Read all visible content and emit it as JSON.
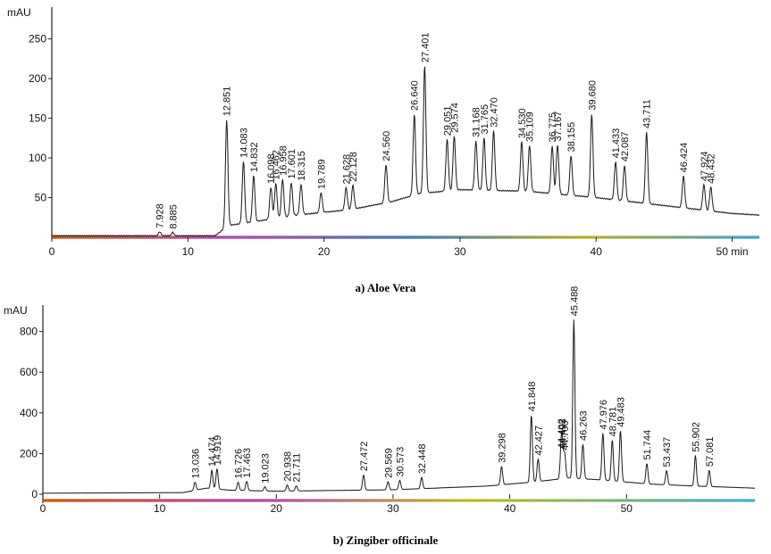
{
  "chart_data": [
    {
      "type": "line",
      "caption": "a) Aloe Vera",
      "ylabel": "mAU",
      "xlabel": "min",
      "xlim": [
        0,
        52
      ],
      "ylim": [
        0,
        290
      ],
      "x_ticks": [
        0,
        10,
        20,
        30,
        40,
        50
      ],
      "x_tick_labels": [
        "0",
        "10",
        "20",
        "30",
        "40",
        "50 min"
      ],
      "y_ticks": [
        50,
        100,
        150,
        200,
        250
      ],
      "y_tick_labels": [
        "50",
        "100",
        "150",
        "200",
        "250"
      ],
      "grid": false,
      "baseline": [
        [
          0,
          2
        ],
        [
          12,
          2
        ],
        [
          13,
          15
        ],
        [
          15,
          20
        ],
        [
          18,
          28
        ],
        [
          22,
          35
        ],
        [
          25,
          45
        ],
        [
          27,
          55
        ],
        [
          30,
          60
        ],
        [
          35,
          58
        ],
        [
          40,
          50
        ],
        [
          45,
          40
        ],
        [
          50,
          30
        ],
        [
          52,
          28
        ]
      ],
      "peaks": [
        {
          "rt": "7.928",
          "x": 7.928,
          "y": 5
        },
        {
          "rt": "8.885",
          "x": 8.885,
          "y": 4
        },
        {
          "rt": "12.851",
          "x": 12.851,
          "y": 135
        },
        {
          "rt": "14.083",
          "x": 14.083,
          "y": 78
        },
        {
          "rt": "14.832",
          "x": 14.832,
          "y": 58
        },
        {
          "rt": "16.098",
          "x": 16.098,
          "y": 40
        },
        {
          "rt": "16.462",
          "x": 16.462,
          "y": 44
        },
        {
          "rt": "16.958",
          "x": 16.958,
          "y": 48
        },
        {
          "rt": "17.601",
          "x": 17.601,
          "y": 42
        },
        {
          "rt": "18.315",
          "x": 18.315,
          "y": 38
        },
        {
          "rt": "19.789",
          "x": 19.789,
          "y": 25
        },
        {
          "rt": "21.628",
          "x": 21.628,
          "y": 28
        },
        {
          "rt": "22.128",
          "x": 22.128,
          "y": 30
        },
        {
          "rt": "24.560",
          "x": 24.56,
          "y": 48
        },
        {
          "rt": "26.640",
          "x": 26.64,
          "y": 102
        },
        {
          "rt": "27.401",
          "x": 27.401,
          "y": 160
        },
        {
          "rt": "29.051",
          "x": 29.051,
          "y": 65
        },
        {
          "rt": "29.574",
          "x": 29.574,
          "y": 68
        },
        {
          "rt": "31.168",
          "x": 31.168,
          "y": 62
        },
        {
          "rt": "31.765",
          "x": 31.765,
          "y": 66
        },
        {
          "rt": "32.470",
          "x": 32.47,
          "y": 75
        },
        {
          "rt": "34.530",
          "x": 34.53,
          "y": 62
        },
        {
          "rt": "35.109",
          "x": 35.109,
          "y": 58
        },
        {
          "rt": "36.775",
          "x": 36.775,
          "y": 60
        },
        {
          "rt": "37.167",
          "x": 37.167,
          "y": 62
        },
        {
          "rt": "38.155",
          "x": 38.155,
          "y": 50
        },
        {
          "rt": "39.680",
          "x": 39.68,
          "y": 105
        },
        {
          "rt": "41.433",
          "x": 41.433,
          "y": 48
        },
        {
          "rt": "42.087",
          "x": 42.087,
          "y": 45
        },
        {
          "rt": "43.711",
          "x": 43.711,
          "y": 90
        },
        {
          "rt": "46.424",
          "x": 46.424,
          "y": 40
        },
        {
          "rt": "47.924",
          "x": 47.924,
          "y": 32
        },
        {
          "rt": "48.432",
          "x": 48.432,
          "y": 30
        }
      ]
    },
    {
      "type": "line",
      "caption": "b) Zingiber officinale",
      "ylabel": "mAU",
      "xlim": [
        0,
        61
      ],
      "ylim": [
        0,
        930
      ],
      "x_ticks": [
        0,
        10,
        20,
        30,
        40,
        50
      ],
      "x_tick_labels": [
        "0",
        "10",
        "20",
        "30",
        "40",
        "50"
      ],
      "y_ticks": [
        0,
        200,
        400,
        600,
        800
      ],
      "y_tick_labels": [
        "0",
        "200",
        "400",
        "600",
        "800"
      ],
      "grid": false,
      "baseline": [
        [
          0,
          5
        ],
        [
          12,
          8
        ],
        [
          14,
          30
        ],
        [
          16,
          20
        ],
        [
          20,
          15
        ],
        [
          30,
          22
        ],
        [
          38,
          40
        ],
        [
          42,
          60
        ],
        [
          45,
          80
        ],
        [
          48,
          70
        ],
        [
          52,
          50
        ],
        [
          56,
          40
        ],
        [
          61,
          30
        ]
      ],
      "peaks": [
        {
          "rt": "13.036",
          "x": 13.036,
          "y": 40
        },
        {
          "rt": "14.474",
          "x": 14.474,
          "y": 90
        },
        {
          "rt": "14.919",
          "x": 14.919,
          "y": 100
        },
        {
          "rt": "16.726",
          "x": 16.726,
          "y": 40
        },
        {
          "rt": "17.463",
          "x": 17.463,
          "y": 45
        },
        {
          "rt": "19.023",
          "x": 19.023,
          "y": 20
        },
        {
          "rt": "20.938",
          "x": 20.938,
          "y": 30
        },
        {
          "rt": "21.711",
          "x": 21.711,
          "y": 25
        },
        {
          "rt": "27.472",
          "x": 27.472,
          "y": 75
        },
        {
          "rt": "29.569",
          "x": 29.569,
          "y": 40
        },
        {
          "rt": "30.573",
          "x": 30.573,
          "y": 45
        },
        {
          "rt": "32.448",
          "x": 32.448,
          "y": 55
        },
        {
          "rt": "39.298",
          "x": 39.298,
          "y": 90
        },
        {
          "rt": "41.848",
          "x": 41.848,
          "y": 330
        },
        {
          "rt": "42.427",
          "x": 42.427,
          "y": 110
        },
        {
          "rt": "44.402",
          "x": 44.402,
          "y": 130
        },
        {
          "rt": "44.493",
          "x": 44.493,
          "y": 130
        },
        {
          "rt": "44.700",
          "x": 44.7,
          "y": 120
        },
        {
          "rt": "45.488",
          "x": 45.488,
          "y": 780
        },
        {
          "rt": "46.263",
          "x": 46.263,
          "y": 170
        },
        {
          "rt": "47.976",
          "x": 47.976,
          "y": 230
        },
        {
          "rt": "48.781",
          "x": 48.781,
          "y": 200
        },
        {
          "rt": "49.483",
          "x": 49.483,
          "y": 250
        },
        {
          "rt": "51.744",
          "x": 51.744,
          "y": 100
        },
        {
          "rt": "53.437",
          "x": 53.437,
          "y": 70
        },
        {
          "rt": "55.902",
          "x": 55.902,
          "y": 150
        },
        {
          "rt": "57.081",
          "x": 57.081,
          "y": 80
        }
      ]
    }
  ]
}
